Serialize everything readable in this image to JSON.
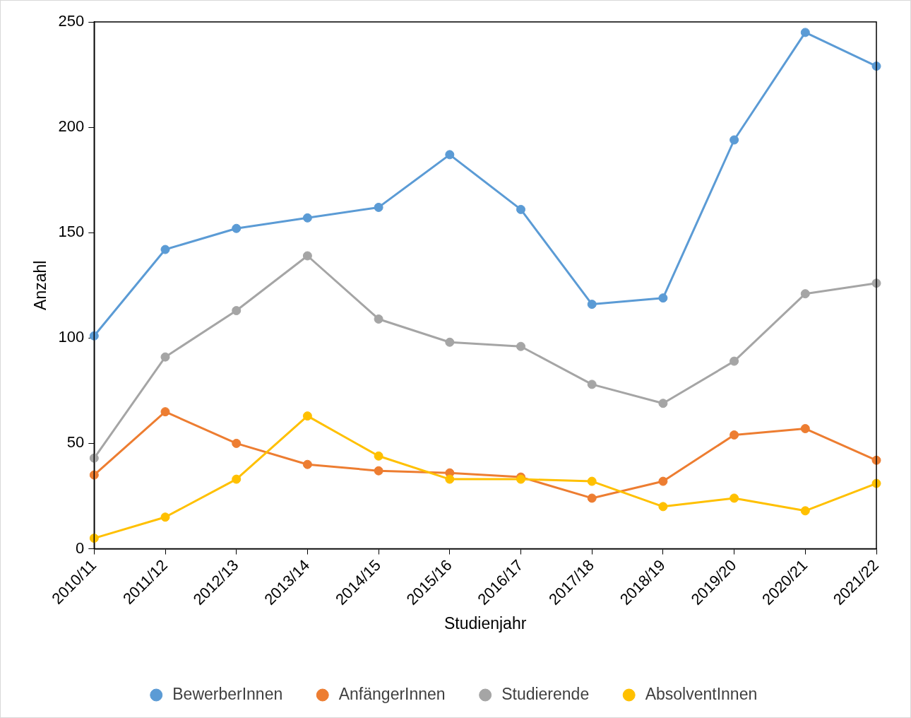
{
  "chart_data": {
    "type": "line",
    "xlabel": "Studienjahr",
    "ylabel": "Anzahl",
    "categories": [
      "2010/11",
      "2011/12",
      "2012/13",
      "2013/14",
      "2014/15",
      "2015/16",
      "2016/17",
      "2017/18",
      "2018/19",
      "2019/20",
      "2020/21",
      "2021/22"
    ],
    "series": [
      {
        "name": "BewerberInnen",
        "color": "#5b9bd5",
        "values": [
          101,
          142,
          152,
          157,
          162,
          187,
          161,
          116,
          119,
          194,
          245,
          229
        ]
      },
      {
        "name": "AnfängerInnen",
        "color": "#ed7d31",
        "values": [
          35,
          65,
          50,
          40,
          37,
          36,
          34,
          24,
          32,
          54,
          57,
          42
        ]
      },
      {
        "name": "Studierende",
        "color": "#a5a5a5",
        "values": [
          43,
          91,
          113,
          139,
          109,
          98,
          96,
          78,
          69,
          89,
          121,
          126
        ]
      },
      {
        "name": "AbsolventInnen",
        "color": "#ffc000",
        "values": [
          5,
          15,
          33,
          63,
          44,
          33,
          33,
          32,
          20,
          24,
          18,
          31
        ]
      }
    ],
    "ylim": [
      0,
      250
    ],
    "yticks": [
      0,
      50,
      100,
      150,
      200,
      250
    ],
    "grid": false,
    "legend": "bottom",
    "marker": "circle",
    "line_style": "solid"
  }
}
